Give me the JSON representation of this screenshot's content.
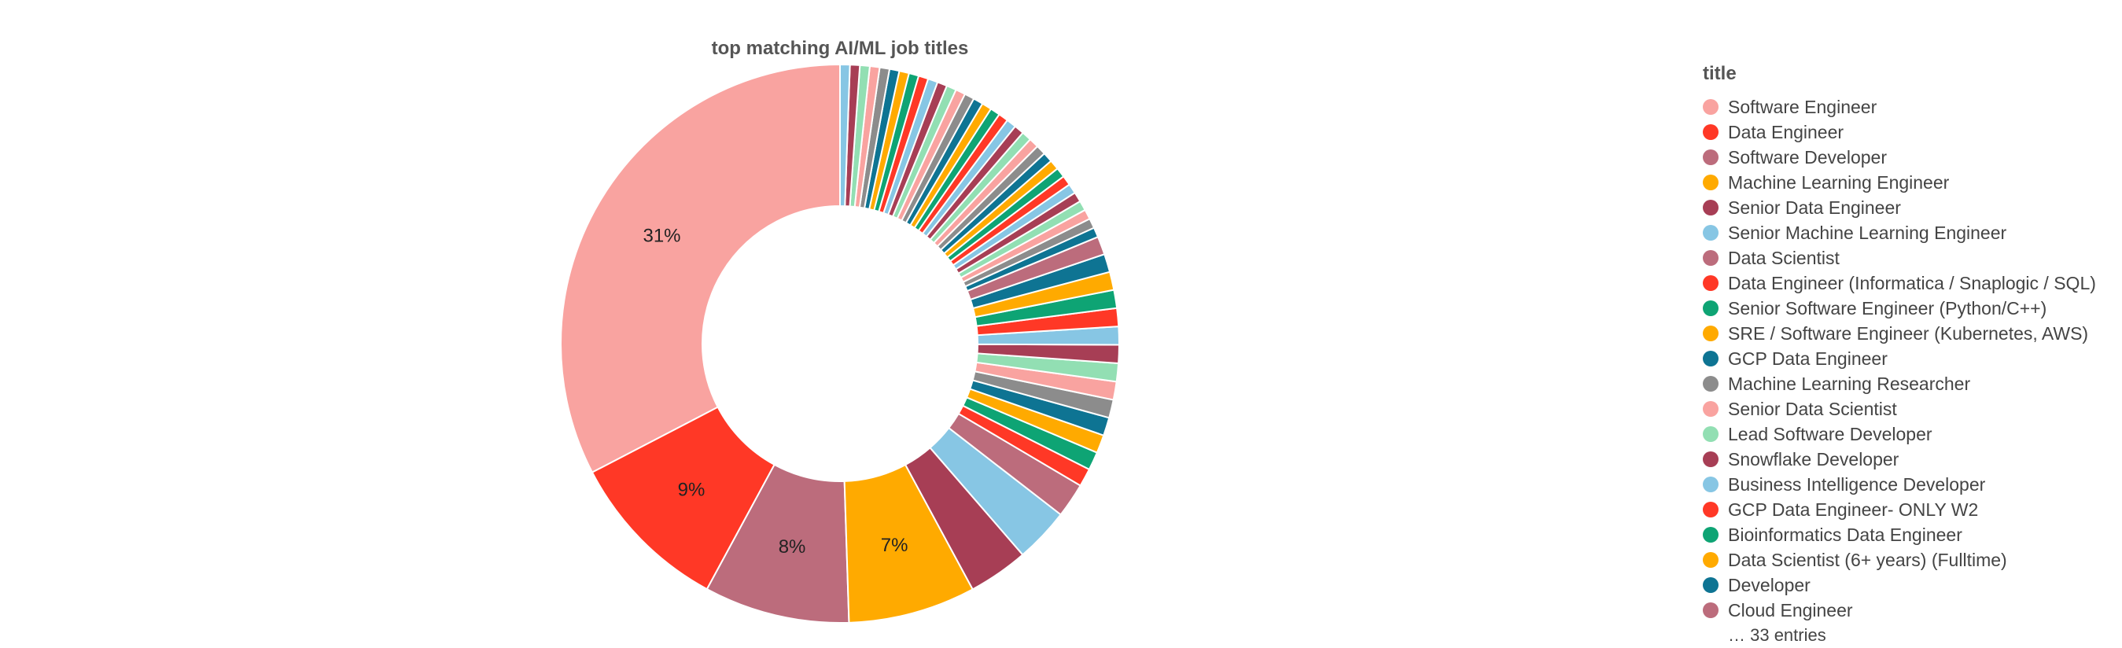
{
  "chart_data": {
    "type": "pie",
    "title": "top matching AI/ML job titles",
    "legend_title": "title",
    "legend_position": "right",
    "legend_more": "… 33 entries",
    "slices": [
      {
        "name": "Software Engineer",
        "value": 31,
        "label": "31%",
        "color": "#F9A3A0"
      },
      {
        "name": "Data Engineer",
        "value": 9,
        "label": "9%",
        "color": "#FF3826"
      },
      {
        "name": "Software Developer",
        "value": 8,
        "label": "8%",
        "color": "#BC6C7C"
      },
      {
        "name": "Machine Learning Engineer",
        "value": 7,
        "label": "7%",
        "color": "#FFAA00"
      },
      {
        "name": "Senior Data Engineer",
        "value": 3.3,
        "color": "#A73E55"
      },
      {
        "name": "Senior Machine Learning Engineer",
        "value": 3,
        "color": "#87C6E4"
      },
      {
        "name": "Data Scientist",
        "value": 1.9,
        "color": "#BC6C7C"
      },
      {
        "name": "Data Engineer (Informatica / Snaplogic / SQL)",
        "value": 1,
        "color": "#FF3826"
      },
      {
        "name": "Senior Software Engineer (Python/C++)",
        "value": 1,
        "color": "#0EA474"
      },
      {
        "name": "SRE / Software Engineer (Kubernetes, AWS)",
        "value": 1,
        "color": "#FFAA00"
      },
      {
        "name": "GCP Data Engineer",
        "value": 1,
        "color": "#0E7493"
      },
      {
        "name": "Machine Learning Researcher",
        "value": 1,
        "color": "#8C8C8C"
      },
      {
        "name": "Senior Data Scientist",
        "value": 1,
        "color": "#F9A3A0"
      },
      {
        "name": "Lead Software Developer",
        "value": 1,
        "color": "#92DFB3"
      },
      {
        "name": "Snowflake Developer",
        "value": 1,
        "color": "#A73E55"
      },
      {
        "name": "Business Intelligence Developer",
        "value": 1,
        "color": "#87C6E4"
      },
      {
        "name": "GCP Data Engineer- ONLY W2",
        "value": 1,
        "color": "#FF3826"
      },
      {
        "name": "Bioinformatics Data Engineer",
        "value": 1,
        "color": "#0EA474"
      },
      {
        "name": "Data Scientist (6+ years) (Fulltime)",
        "value": 1,
        "color": "#FFAA00"
      },
      {
        "name": "Developer",
        "value": 1,
        "color": "#0E7493"
      },
      {
        "name": "Cloud Engineer",
        "value": 1,
        "color": "#BC6C7C"
      }
    ],
    "more_count": 33,
    "more_value_each": 0.54,
    "more_palette": [
      "#0E7493",
      "#8C8C8C",
      "#F9A3A0",
      "#92DFB3",
      "#A73E55",
      "#87C6E4",
      "#FF3826",
      "#0EA474",
      "#FFAA00"
    ]
  }
}
